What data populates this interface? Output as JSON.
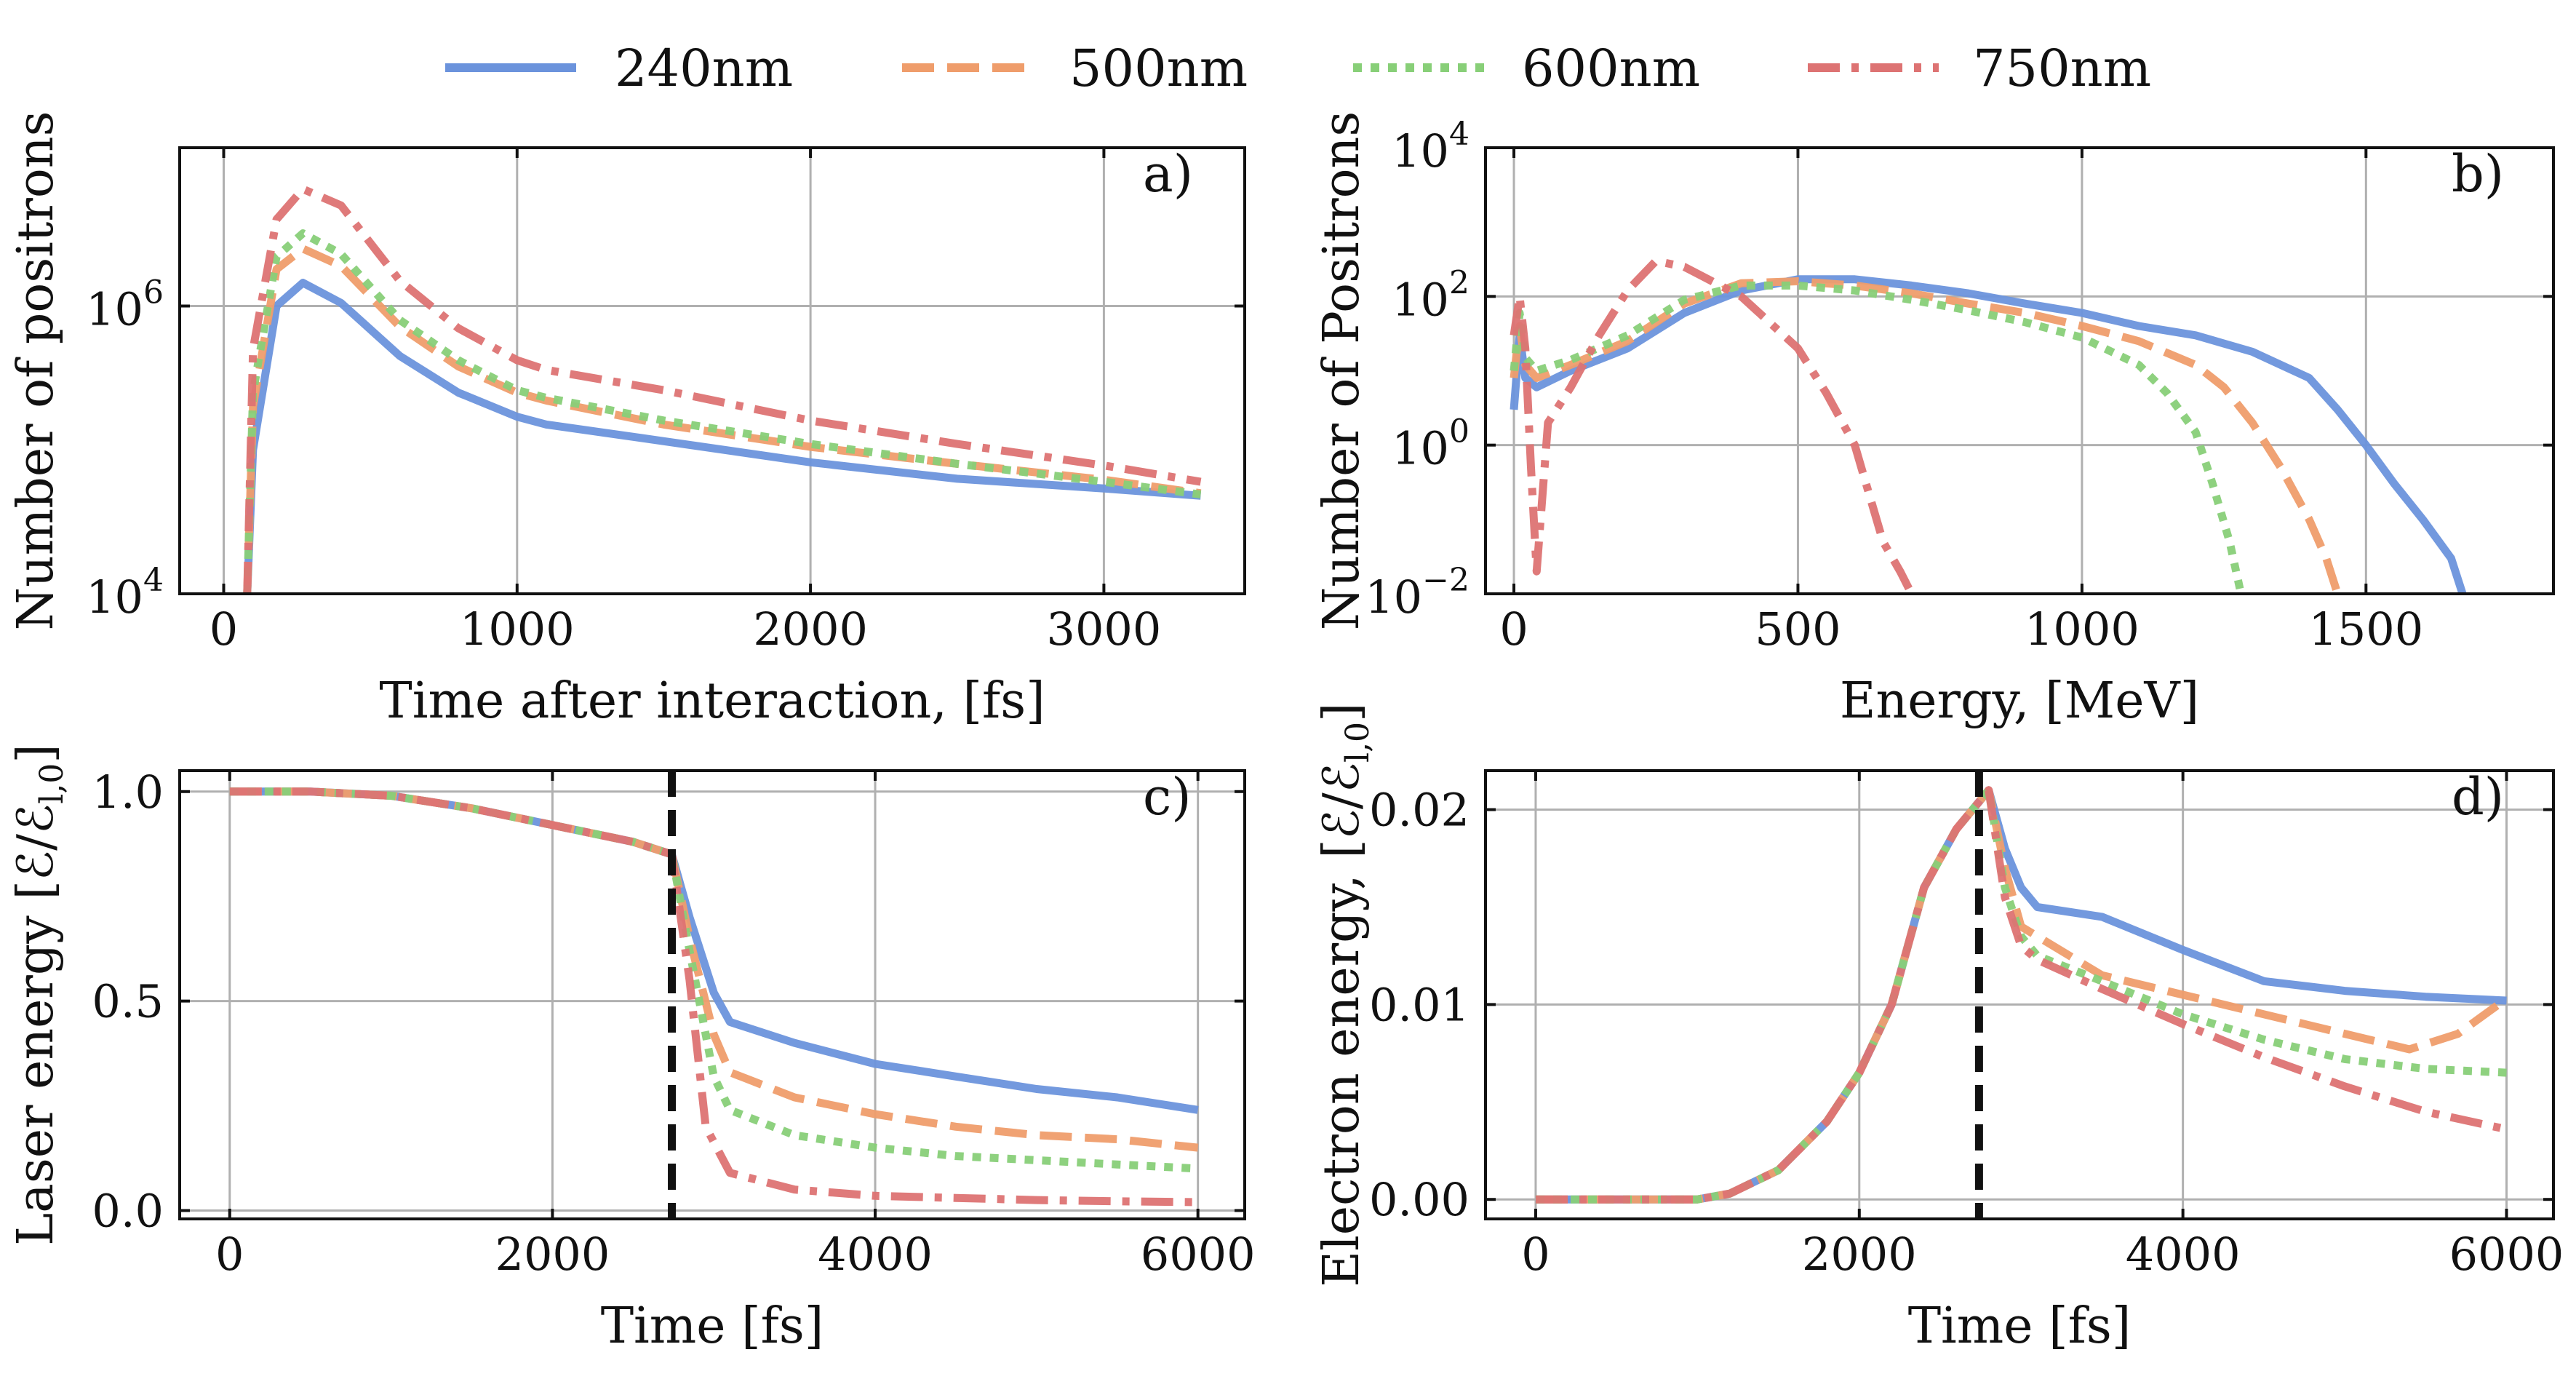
{
  "legend": {
    "entries": [
      {
        "name": "240nm",
        "color": "#6b93dc",
        "dash": "solid"
      },
      {
        "name": "500nm",
        "color": "#ef9d6b",
        "dash": "dashed"
      },
      {
        "name": "600nm",
        "color": "#88cf78",
        "dash": "dotted"
      },
      {
        "name": "750nm",
        "color": "#dd7373",
        "dash": "dashdot"
      }
    ]
  },
  "chart_data": [
    {
      "id": "a",
      "panel_label": "a)",
      "type": "line",
      "xlabel": "Time after interaction,  [fs]",
      "ylabel": "Number of positrons",
      "xlim": [
        -150,
        3480
      ],
      "ylim_log10": [
        4,
        7.1
      ],
      "yscale": "log",
      "xticks": [
        0,
        1000,
        2000,
        3000
      ],
      "xtick_labels": [
        "0",
        "1000",
        "2000",
        "3000"
      ],
      "yticks_log10": [
        4,
        6
      ],
      "ytick_labels": [
        "10",
        "10"
      ],
      "ytick_exponents": [
        "4",
        "6"
      ],
      "grid": true,
      "series": [
        {
          "name": "240nm",
          "x": [
            80,
            100,
            180,
            270,
            400,
            600,
            800,
            1000,
            1100,
            1500,
            2000,
            2500,
            3000,
            3330
          ],
          "y": [
            10000,
            100000,
            1000000,
            1450000,
            1050000,
            450000,
            250000,
            170000,
            150000,
            115000,
            82000,
            63000,
            54000,
            48000
          ]
        },
        {
          "name": "500nm",
          "x": [
            80,
            100,
            180,
            270,
            400,
            600,
            800,
            1000,
            1100,
            1500,
            2000,
            2500,
            3000,
            3330
          ],
          "y": [
            10000,
            200000,
            1800000,
            2500000,
            1900000,
            720000,
            380000,
            250000,
            220000,
            150000,
            105000,
            80000,
            62000,
            50000
          ]
        },
        {
          "name": "600nm",
          "x": [
            80,
            100,
            180,
            270,
            400,
            600,
            800,
            1000,
            1100,
            1500,
            2000,
            2500,
            3000,
            3330
          ],
          "y": [
            10000,
            250000,
            2200000,
            3200000,
            2300000,
            800000,
            420000,
            260000,
            230000,
            160000,
            110000,
            80000,
            60000,
            49000
          ]
        },
        {
          "name": "750nm",
          "x": [
            80,
            100,
            180,
            270,
            400,
            600,
            800,
            1000,
            1100,
            1500,
            2000,
            2500,
            3000,
            3330
          ],
          "y": [
            10000,
            500000,
            4000000,
            6500000,
            5000000,
            1500000,
            700000,
            420000,
            360000,
            260000,
            160000,
            110000,
            78000,
            60000
          ]
        }
      ]
    },
    {
      "id": "b",
      "panel_label": "b)",
      "type": "line",
      "xlabel": "Energy,  [MeV]",
      "ylabel": "Number of Positrons",
      "xlim": [
        -50,
        1830
      ],
      "ylim_log10": [
        -2,
        4
      ],
      "yscale": "log",
      "xticks": [
        0,
        500,
        1000,
        1500
      ],
      "xtick_labels": [
        "0",
        "500",
        "1000",
        "1500"
      ],
      "yticks_log10": [
        -2,
        0,
        2,
        4
      ],
      "ytick_labels": [
        "10",
        "10",
        "10",
        "10"
      ],
      "ytick_exponents": [
        "−2",
        "0",
        "2",
        "4"
      ],
      "grid": true,
      "series": [
        {
          "name": "240nm",
          "x": [
            0,
            10,
            20,
            40,
            100,
            200,
            300,
            400,
            500,
            600,
            700,
            800,
            900,
            1000,
            1100,
            1200,
            1300,
            1400,
            1450,
            1500,
            1550,
            1600,
            1650,
            1670
          ],
          "y": [
            3,
            30,
            8,
            6,
            10,
            20,
            60,
            120,
            170,
            170,
            140,
            110,
            80,
            60,
            40,
            30,
            18,
            8,
            3,
            1,
            0.3,
            0.1,
            0.03,
            0.01
          ]
        },
        {
          "name": "500nm",
          "x": [
            0,
            10,
            20,
            40,
            100,
            200,
            300,
            400,
            500,
            600,
            700,
            800,
            900,
            1000,
            1100,
            1200,
            1250,
            1300,
            1350,
            1400,
            1430,
            1450
          ],
          "y": [
            8,
            40,
            12,
            8,
            12,
            25,
            80,
            150,
            160,
            140,
            110,
            80,
            60,
            40,
            25,
            12,
            6,
            2,
            0.5,
            0.1,
            0.03,
            0.01
          ]
        },
        {
          "name": "600nm",
          "x": [
            0,
            10,
            20,
            40,
            100,
            200,
            300,
            400,
            500,
            600,
            700,
            800,
            900,
            1000,
            1100,
            1150,
            1200,
            1230,
            1260,
            1280
          ],
          "y": [
            10,
            60,
            15,
            10,
            14,
            30,
            90,
            140,
            140,
            120,
            90,
            65,
            45,
            28,
            12,
            5,
            1.5,
            0.3,
            0.05,
            0.01
          ]
        },
        {
          "name": "750nm",
          "x": [
            0,
            10,
            20,
            30,
            40,
            60,
            100,
            150,
            200,
            250,
            300,
            400,
            500,
            550,
            600,
            620,
            650,
            680,
            700
          ],
          "y": [
            30,
            100,
            20,
            0.5,
            0.02,
            2,
            6,
            30,
            120,
            300,
            250,
            100,
            20,
            5,
            1,
            0.3,
            0.05,
            0.02,
            0.01
          ]
        }
      ]
    },
    {
      "id": "c",
      "panel_label": "c)",
      "type": "line",
      "xlabel": "Time  [fs]",
      "ylabel": "Laser energy  [ℰ/ℰ",
      "ylabel_sub": "l,0",
      "ylabel_end": "]",
      "xlim": [
        -310,
        6290
      ],
      "ylim": [
        -0.02,
        1.05
      ],
      "xticks": [
        0,
        2000,
        4000,
        6000
      ],
      "xtick_labels": [
        "0",
        "2000",
        "4000",
        "6000"
      ],
      "yticks": [
        0,
        0.5,
        1.0
      ],
      "ytick_labels": [
        "0.0",
        "0.5",
        "1.0"
      ],
      "grid": true,
      "vline_x": 2740,
      "series": [
        {
          "name": "240nm",
          "x": [
            0,
            500,
            1000,
            1500,
            2000,
            2500,
            2740,
            2850,
            3000,
            3100,
            3500,
            4000,
            4500,
            5000,
            5500,
            6000
          ],
          "y": [
            1.0,
            1.0,
            0.99,
            0.96,
            0.92,
            0.88,
            0.85,
            0.7,
            0.52,
            0.45,
            0.4,
            0.35,
            0.32,
            0.29,
            0.27,
            0.24
          ]
        },
        {
          "name": "500nm",
          "x": [
            0,
            500,
            1000,
            1500,
            2000,
            2500,
            2740,
            2850,
            3000,
            3100,
            3500,
            4000,
            4500,
            5000,
            5500,
            6000
          ],
          "y": [
            1.0,
            1.0,
            0.99,
            0.96,
            0.92,
            0.88,
            0.85,
            0.65,
            0.42,
            0.33,
            0.27,
            0.23,
            0.2,
            0.18,
            0.17,
            0.15
          ]
        },
        {
          "name": "600nm",
          "x": [
            0,
            500,
            1000,
            1500,
            2000,
            2500,
            2740,
            2850,
            3000,
            3100,
            3500,
            4000,
            4500,
            5000,
            5500,
            6000
          ],
          "y": [
            1.0,
            1.0,
            0.99,
            0.96,
            0.92,
            0.88,
            0.85,
            0.62,
            0.32,
            0.24,
            0.18,
            0.15,
            0.13,
            0.12,
            0.11,
            0.1
          ]
        },
        {
          "name": "750nm",
          "x": [
            0,
            500,
            1000,
            1500,
            2000,
            2500,
            2740,
            2850,
            2950,
            3100,
            3500,
            4000,
            4500,
            5000,
            5500,
            6000
          ],
          "y": [
            1.0,
            1.0,
            0.99,
            0.96,
            0.92,
            0.88,
            0.85,
            0.55,
            0.2,
            0.09,
            0.05,
            0.035,
            0.03,
            0.025,
            0.022,
            0.02
          ]
        }
      ]
    },
    {
      "id": "d",
      "panel_label": "d)",
      "type": "line",
      "xlabel": "Time  [fs]",
      "ylabel": "Electron energy,  [ℰ/ℰ",
      "ylabel_sub": "l,0",
      "ylabel_end": "]",
      "xlim": [
        -310,
        6290
      ],
      "ylim": [
        -0.001,
        0.022
      ],
      "xticks": [
        0,
        2000,
        4000,
        6000
      ],
      "xtick_labels": [
        "0",
        "2000",
        "4000",
        "6000"
      ],
      "yticks": [
        0,
        0.01,
        0.02
      ],
      "ytick_labels": [
        "0.00",
        "0.01",
        "0.02"
      ],
      "grid": true,
      "vline_x": 2740,
      "series": [
        {
          "name": "240nm",
          "x": [
            0,
            500,
            1000,
            1200,
            1500,
            1800,
            2000,
            2200,
            2400,
            2600,
            2800,
            2900,
            3000,
            3100,
            3500,
            4000,
            4500,
            5000,
            5500,
            6000
          ],
          "y": [
            0,
            0,
            0,
            0.0003,
            0.0015,
            0.004,
            0.0065,
            0.01,
            0.016,
            0.019,
            0.021,
            0.018,
            0.016,
            0.015,
            0.0145,
            0.0128,
            0.0112,
            0.0107,
            0.0104,
            0.0102
          ]
        },
        {
          "name": "500nm",
          "x": [
            0,
            500,
            1000,
            1200,
            1500,
            1800,
            2000,
            2200,
            2400,
            2600,
            2800,
            2900,
            3000,
            3100,
            3500,
            4000,
            4500,
            5000,
            5400,
            5700,
            6000
          ],
          "y": [
            0,
            0,
            0,
            0.0003,
            0.0015,
            0.004,
            0.0065,
            0.01,
            0.016,
            0.019,
            0.021,
            0.017,
            0.014,
            0.0135,
            0.0115,
            0.0105,
            0.0095,
            0.0085,
            0.0077,
            0.0085,
            0.0103
          ]
        },
        {
          "name": "600nm",
          "x": [
            0,
            500,
            1000,
            1200,
            1500,
            1800,
            2000,
            2200,
            2400,
            2600,
            2800,
            2900,
            3000,
            3100,
            3500,
            4000,
            4500,
            5000,
            5500,
            6000
          ],
          "y": [
            0,
            0,
            0,
            0.0003,
            0.0015,
            0.004,
            0.0065,
            0.01,
            0.016,
            0.019,
            0.021,
            0.016,
            0.0135,
            0.0125,
            0.0112,
            0.0095,
            0.0082,
            0.0072,
            0.0067,
            0.0065
          ]
        },
        {
          "name": "750nm",
          "x": [
            0,
            500,
            1000,
            1200,
            1500,
            1800,
            2000,
            2200,
            2400,
            2600,
            2800,
            2900,
            3000,
            3100,
            3500,
            4000,
            4500,
            5000,
            5500,
            6000
          ],
          "y": [
            0,
            0,
            0,
            0.0003,
            0.0015,
            0.004,
            0.0065,
            0.01,
            0.016,
            0.019,
            0.021,
            0.0155,
            0.013,
            0.0123,
            0.0108,
            0.009,
            0.0073,
            0.0058,
            0.0045,
            0.0036
          ]
        }
      ]
    }
  ]
}
